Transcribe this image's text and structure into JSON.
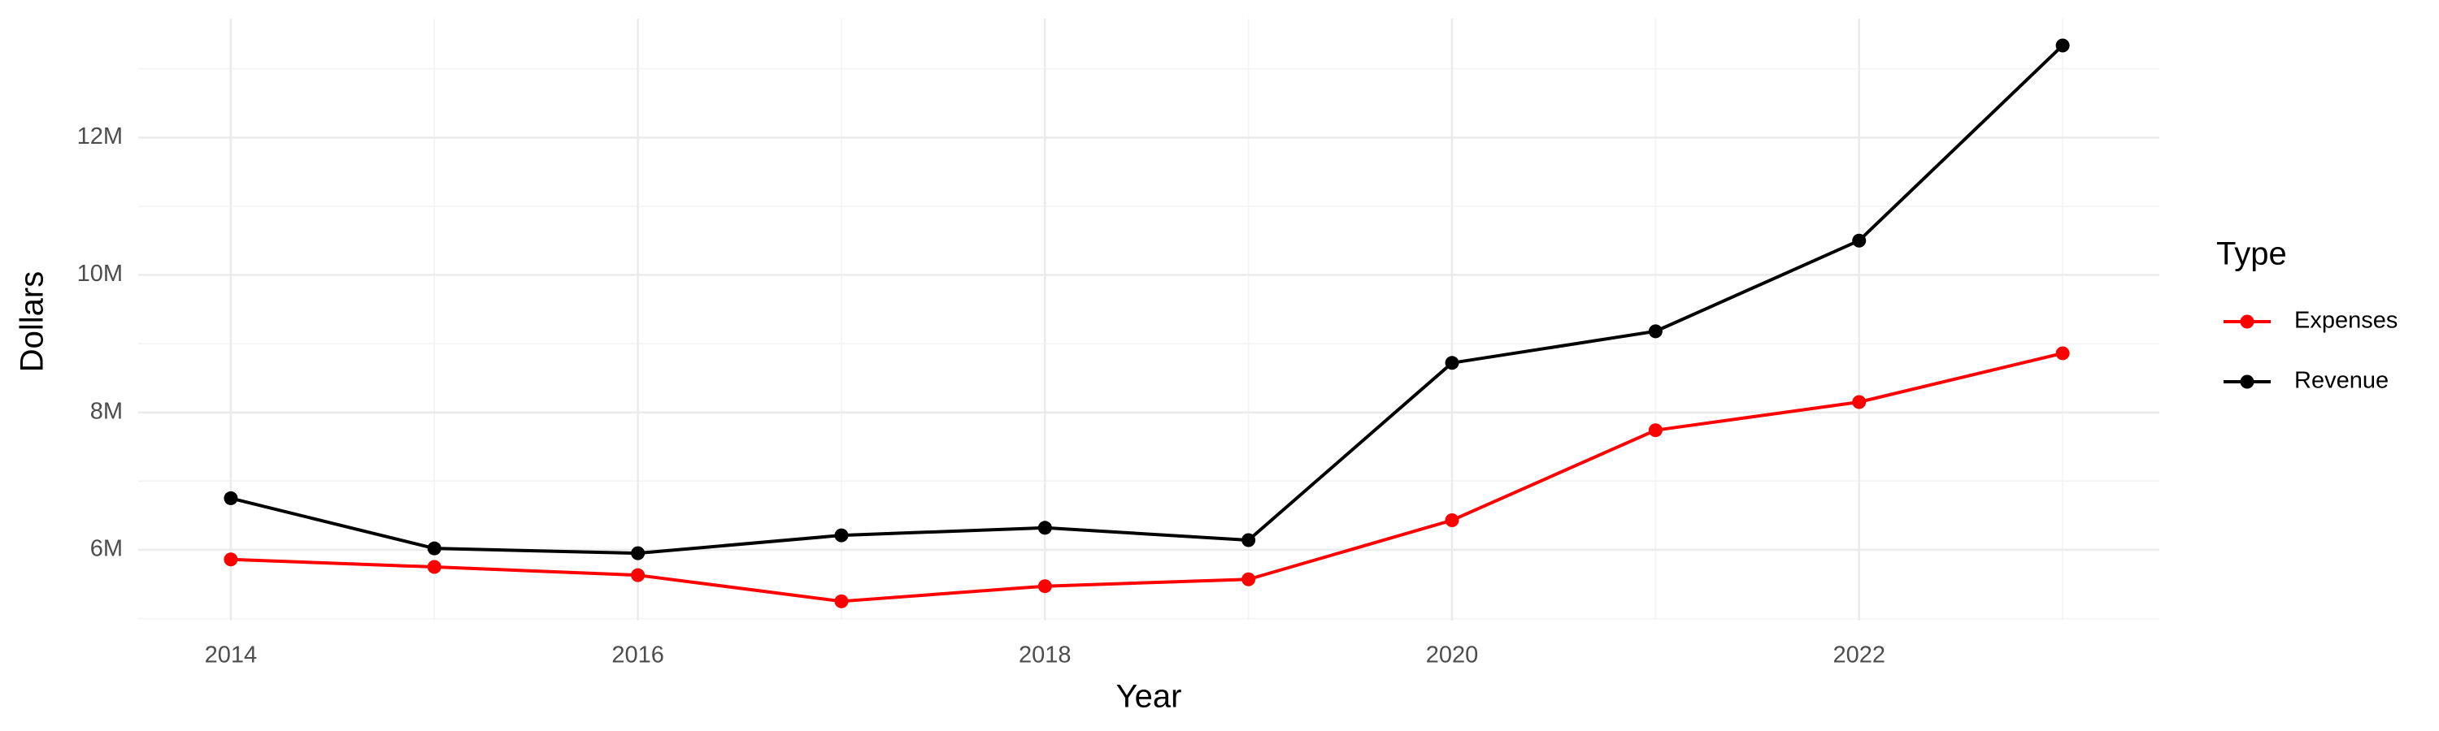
{
  "chart_data": {
    "type": "line",
    "x_label": "Year",
    "y_label": "Dollars",
    "legend_title": "Type",
    "x": [
      2014,
      2015,
      2016,
      2017,
      2018,
      2019,
      2020,
      2021,
      2022,
      2023
    ],
    "series": [
      {
        "name": "Expenses",
        "color": "#ff0000",
        "values": [
          5860000,
          5750000,
          5630000,
          5250000,
          5470000,
          5570000,
          6430000,
          7740000,
          8150000,
          8860000
        ]
      },
      {
        "name": "Revenue",
        "color": "#000000",
        "values": [
          6750000,
          6020000,
          5950000,
          6210000,
          6320000,
          6140000,
          8720000,
          9180000,
          10500000,
          13340000
        ]
      }
    ],
    "xlim": [
      2013.545,
      2023.475
    ],
    "ylim": [
      4970000,
      13730000
    ],
    "xticks": [
      2014,
      2016,
      2018,
      2020,
      2022
    ],
    "yticks": [
      {
        "value": 6000000,
        "label": "6M"
      },
      {
        "value": 8000000,
        "label": "8M"
      },
      {
        "value": 10000000,
        "label": "10M"
      },
      {
        "value": 12000000,
        "label": "12M"
      }
    ],
    "grid": true,
    "legend": "right"
  }
}
